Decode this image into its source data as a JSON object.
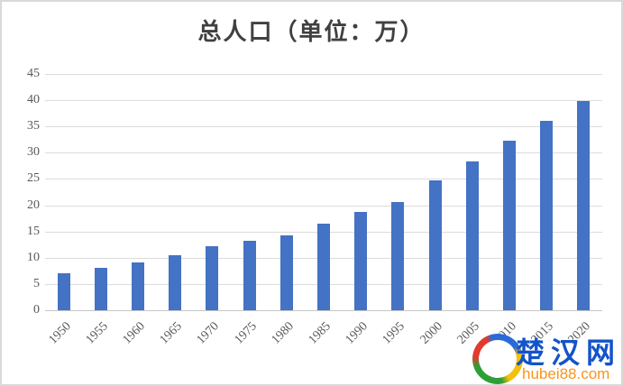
{
  "chart_data": {
    "type": "bar",
    "title": "总人口（单位：万）",
    "categories": [
      "1950",
      "1955",
      "1960",
      "1965",
      "1970",
      "1975",
      "1980",
      "1985",
      "1990",
      "1995",
      "2000",
      "2005",
      "2010",
      "2015",
      "2020"
    ],
    "values": [
      7,
      8,
      9.1,
      10.5,
      12.2,
      13.3,
      14.3,
      16.5,
      18.8,
      20.6,
      24.8,
      28.4,
      32.3,
      36,
      39.8
    ],
    "xlabel": "",
    "ylabel": "",
    "ylim": [
      0,
      45
    ],
    "yticks": [
      0,
      5,
      10,
      15,
      20,
      25,
      30,
      35,
      40,
      45
    ],
    "grid": true,
    "legend": false,
    "x_label_rotation_deg": -45,
    "bar_color": "#4472C4",
    "gridline_color": "#DCDCDC",
    "axis_line_color": "#C6C6C6",
    "tick_label_color": "#595959",
    "title_color": "#404040"
  },
  "watermark": {
    "site_name": "楚汉网",
    "site_url": "hubei88.com",
    "name_color": "#1353CB",
    "url_color": "#F7941D",
    "icon": "globe-swirl-icon",
    "icon_colors": [
      "#E23A2E",
      "#2F9E37",
      "#F2C10E",
      "#2B6AD6"
    ]
  }
}
